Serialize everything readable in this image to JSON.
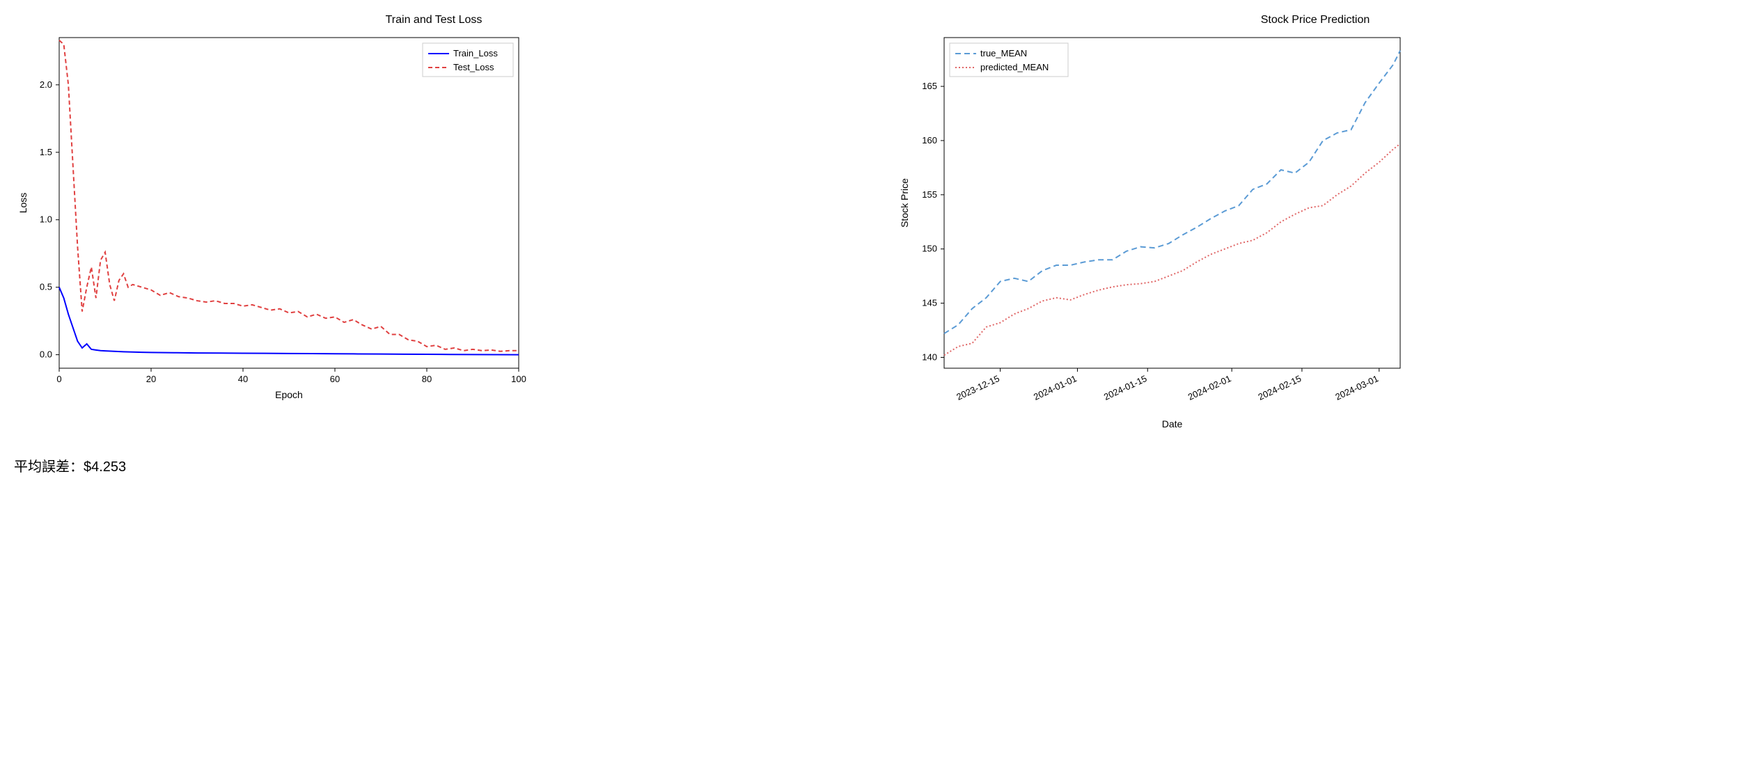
{
  "loss_chart": {
    "type": "line",
    "title": "Train and Test Loss",
    "xlabel": "Epoch",
    "ylabel": "Loss",
    "xlim": [
      0,
      100
    ],
    "ylim": [
      -0.1,
      2.35
    ],
    "xticks": [
      0,
      20,
      40,
      60,
      80,
      100
    ],
    "yticks": [
      0.0,
      0.5,
      1.0,
      1.5,
      2.0
    ],
    "background_color": "#ffffff",
    "border_color": "#000000",
    "series": [
      {
        "name": "Train_Loss",
        "color": "#0000ff",
        "dash": "solid",
        "linewidth": 2,
        "x": [
          0,
          1,
          2,
          3,
          4,
          5,
          6,
          7,
          8,
          9,
          10,
          12,
          14,
          16,
          18,
          20,
          25,
          30,
          35,
          40,
          45,
          50,
          55,
          60,
          65,
          70,
          75,
          80,
          85,
          90,
          95,
          100
        ],
        "y": [
          0.5,
          0.42,
          0.3,
          0.2,
          0.1,
          0.05,
          0.08,
          0.04,
          0.035,
          0.03,
          0.028,
          0.025,
          0.022,
          0.02,
          0.018,
          0.017,
          0.015,
          0.013,
          0.012,
          0.011,
          0.01,
          0.009,
          0.008,
          0.007,
          0.006,
          0.005,
          0.004,
          0.003,
          0.002,
          0.001,
          0.0005,
          0.0
        ]
      },
      {
        "name": "Test_Loss",
        "color": "#e04040",
        "dash": "6,4",
        "linewidth": 2,
        "x": [
          0,
          1,
          2,
          3,
          4,
          5,
          6,
          7,
          8,
          9,
          10,
          11,
          12,
          13,
          14,
          15,
          16,
          18,
          20,
          22,
          24,
          26,
          28,
          30,
          32,
          34,
          36,
          38,
          40,
          42,
          44,
          46,
          48,
          50,
          52,
          54,
          56,
          58,
          60,
          62,
          64,
          66,
          68,
          70,
          72,
          74,
          76,
          78,
          80,
          82,
          84,
          86,
          88,
          90,
          92,
          94,
          96,
          98,
          100
        ],
        "y": [
          2.33,
          2.3,
          2.0,
          1.4,
          0.8,
          0.32,
          0.5,
          0.65,
          0.42,
          0.7,
          0.76,
          0.52,
          0.4,
          0.55,
          0.6,
          0.5,
          0.52,
          0.5,
          0.48,
          0.44,
          0.46,
          0.43,
          0.42,
          0.4,
          0.39,
          0.4,
          0.38,
          0.38,
          0.36,
          0.37,
          0.35,
          0.33,
          0.34,
          0.31,
          0.32,
          0.28,
          0.3,
          0.27,
          0.28,
          0.24,
          0.26,
          0.22,
          0.19,
          0.21,
          0.15,
          0.15,
          0.11,
          0.1,
          0.06,
          0.07,
          0.04,
          0.05,
          0.03,
          0.04,
          0.03,
          0.035,
          0.025,
          0.03,
          0.03
        ]
      }
    ],
    "legend_position": "top-right"
  },
  "stock_chart": {
    "type": "line",
    "title": "Stock Price Prediction",
    "xlabel": "Date",
    "ylabel": "Stock Price",
    "ylim": [
      139,
      169.5
    ],
    "yticks": [
      140,
      145,
      150,
      155,
      160,
      165
    ],
    "xticks_labels": [
      "2023-12-15",
      "2024-01-01",
      "2024-01-15",
      "2024-02-01",
      "2024-02-15",
      "2024-03-01"
    ],
    "xticks_positions": [
      8,
      19,
      29,
      41,
      51,
      62
    ],
    "x_range": [
      0,
      65
    ],
    "background_color": "#ffffff",
    "border_color": "#000000",
    "xtick_rotation": 25,
    "series": [
      {
        "name": "true_MEAN",
        "color": "#5b9bd5",
        "dash": "8,5",
        "linewidth": 2,
        "x": [
          0,
          2,
          4,
          6,
          8,
          10,
          12,
          14,
          16,
          18,
          20,
          22,
          24,
          26,
          28,
          30,
          32,
          34,
          36,
          38,
          40,
          42,
          44,
          46,
          48,
          50,
          52,
          54,
          56,
          58,
          60,
          62,
          64,
          65
        ],
        "y": [
          142.2,
          143.0,
          144.5,
          145.5,
          147.0,
          147.3,
          147.0,
          148.0,
          148.5,
          148.5,
          148.8,
          149.0,
          149.0,
          149.8,
          150.2,
          150.1,
          150.5,
          151.3,
          152.0,
          152.8,
          153.5,
          154.0,
          155.5,
          156.0,
          157.3,
          157.0,
          158.0,
          160.0,
          160.7,
          161.0,
          163.5,
          165.3,
          167.0,
          168.3
        ]
      },
      {
        "name": "predicted_MEAN",
        "color": "#e06666",
        "dash": "2,3",
        "linewidth": 2,
        "x": [
          0,
          2,
          4,
          6,
          8,
          10,
          12,
          14,
          16,
          18,
          20,
          22,
          24,
          26,
          28,
          30,
          32,
          34,
          36,
          38,
          40,
          42,
          44,
          46,
          48,
          50,
          52,
          54,
          56,
          58,
          60,
          62,
          64,
          65
        ],
        "y": [
          140.2,
          141.0,
          141.3,
          142.8,
          143.2,
          144.0,
          144.5,
          145.2,
          145.5,
          145.3,
          145.8,
          146.2,
          146.5,
          146.7,
          146.8,
          147.0,
          147.5,
          148.0,
          148.8,
          149.5,
          150.0,
          150.5,
          150.8,
          151.5,
          152.5,
          153.2,
          153.8,
          154.0,
          155.0,
          155.8,
          157.0,
          158.0,
          159.2,
          159.7
        ]
      }
    ],
    "legend_position": "top-left"
  },
  "footer": {
    "label": "平均誤差：$4.253"
  },
  "style": {
    "title_fontsize": 16,
    "label_fontsize": 14,
    "tick_fontsize": 13,
    "legend_fontsize": 13
  }
}
